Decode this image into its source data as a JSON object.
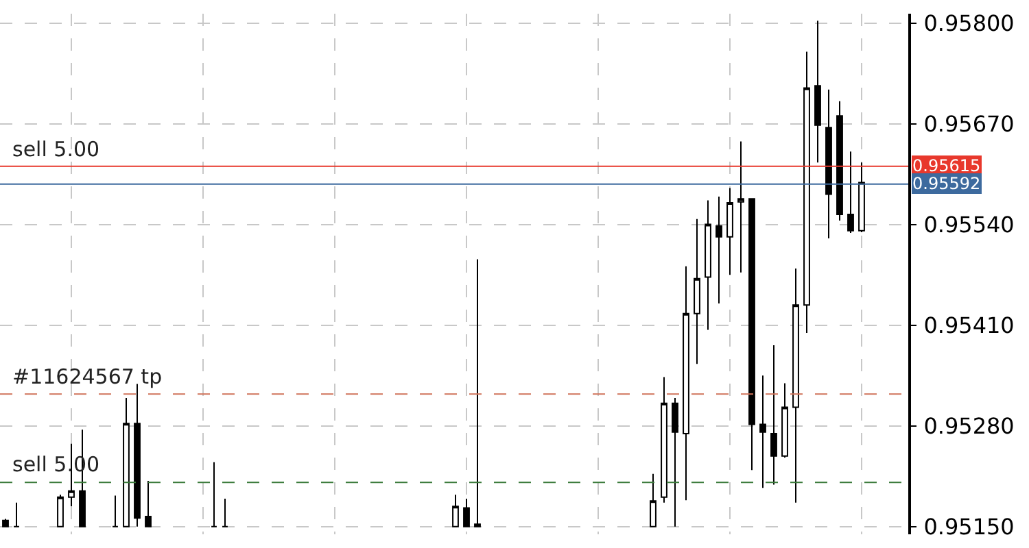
{
  "chart_data": {
    "type": "candlestick",
    "categories": [
      null,
      null,
      null,
      null,
      null,
      null,
      null,
      null,
      null,
      null,
      null,
      null,
      null,
      null,
      null,
      null,
      null,
      null,
      null,
      null,
      null,
      null,
      null,
      null,
      null,
      null,
      null,
      null,
      null,
      null,
      null,
      null,
      null,
      null,
      null,
      null,
      null,
      null,
      null,
      null,
      null,
      null,
      null,
      null,
      null,
      null,
      null,
      null,
      null,
      null,
      null,
      null,
      null,
      null,
      null,
      null,
      null,
      null,
      null,
      null,
      null,
      null,
      null,
      null,
      null,
      null,
      null,
      null,
      null,
      null,
      null,
      null,
      null,
      null,
      null,
      null,
      null,
      null,
      null
    ],
    "ohlc": [
      [
        0.95158,
        0.9516,
        0.9515,
        0.9515
      ],
      [
        0.9515,
        0.95181,
        0.9515,
        0.9515
      ],
      null,
      null,
      null,
      [
        0.9515,
        0.95191,
        0.9515,
        0.95188
      ],
      [
        0.95188,
        0.95257,
        0.95176,
        0.95196
      ],
      [
        0.95196,
        0.95275,
        0.9515,
        0.9515
      ],
      null,
      null,
      [
        0.9515,
        0.9519,
        0.9515,
        0.9515
      ],
      [
        0.9515,
        0.95316,
        0.9515,
        0.95283
      ],
      [
        0.95283,
        0.95334,
        0.9515,
        0.95161
      ],
      [
        0.95163,
        0.95209,
        0.9515,
        0.9515
      ],
      null,
      null,
      null,
      null,
      null,
      [
        0.9515,
        0.95233,
        0.9515,
        0.9515
      ],
      [
        0.9515,
        0.95186,
        0.9515,
        0.9515
      ],
      null,
      null,
      null,
      null,
      null,
      null,
      null,
      null,
      null,
      null,
      null,
      null,
      null,
      null,
      null,
      null,
      null,
      null,
      null,
      null,
      [
        0.9515,
        0.95191,
        0.9515,
        0.95176
      ],
      [
        0.95174,
        0.95186,
        0.9515,
        0.9515
      ],
      [
        0.9515,
        0.95495,
        0.9515,
        0.95153
      ],
      null,
      null,
      null,
      null,
      null,
      null,
      null,
      null,
      null,
      null,
      null,
      null,
      null,
      null,
      null,
      [
        0.9515,
        0.95218,
        0.9515,
        0.95183
      ],
      [
        0.95188,
        0.95343,
        0.95181,
        0.95309
      ],
      [
        0.95309,
        0.95316,
        0.9515,
        0.95272
      ],
      [
        0.9527,
        0.95486,
        0.95184,
        0.95425
      ],
      [
        0.95425,
        0.95547,
        0.9536,
        0.9547
      ],
      [
        0.95472,
        0.95571,
        0.95404,
        0.9554
      ],
      [
        0.95538,
        0.95576,
        0.95438,
        0.95524
      ],
      [
        0.95524,
        0.95587,
        0.95475,
        0.95568
      ],
      [
        0.95569,
        0.95647,
        0.95478,
        0.95573
      ],
      [
        0.95573,
        0.95573,
        0.95223,
        0.95282
      ],
      [
        0.95282,
        0.95345,
        0.952,
        0.95272
      ],
      [
        0.9527,
        0.95384,
        0.95204,
        0.95241
      ],
      [
        0.95241,
        0.95335,
        0.95239,
        0.95304
      ],
      [
        0.95304,
        0.95483,
        0.95181,
        0.95436
      ],
      [
        0.95436,
        0.95763,
        0.954,
        0.95716
      ],
      [
        0.95719,
        0.95803,
        0.9562,
        0.95668
      ],
      [
        0.95665,
        0.95714,
        0.95522,
        0.95579
      ],
      [
        0.9568,
        0.95699,
        0.95545,
        0.95553
      ],
      [
        0.95553,
        0.95634,
        0.95529,
        0.95532
      ],
      [
        0.95532,
        0.9562,
        0.9553,
        0.95594
      ]
    ],
    "ylim": [
      0.9514,
      0.95812
    ],
    "yticks": [
      {
        "value": 0.9515,
        "label": "0.95150"
      },
      {
        "value": 0.9528,
        "label": "0.95280"
      },
      {
        "value": 0.9541,
        "label": "0.95410"
      },
      {
        "value": 0.9554,
        "label": "0.95540"
      },
      {
        "value": 0.9567,
        "label": "0.95670"
      },
      {
        "value": 0.958,
        "label": "0.95800"
      }
    ],
    "tick_labels": "y",
    "grid": true,
    "ref_lines": [
      {
        "axis": "y",
        "value": 0.95615,
        "label": "0.95615",
        "color": "#e8382c",
        "line_style": "solid"
      },
      {
        "axis": "y",
        "value": 0.95592,
        "label": "0.95592",
        "color": "#3d6a9e",
        "line_style": "solid"
      },
      {
        "axis": "y",
        "value": 0.95321,
        "label": "#11624567 tp",
        "color": "#d0735a",
        "line_style": "dashed"
      },
      {
        "axis": "y",
        "value": 0.95207,
        "label": "sell 5.00",
        "color": "#3a7a3a",
        "line_style": "dashed"
      }
    ],
    "annotations": [
      {
        "text": "sell 5.00",
        "y": 0.95615
      }
    ]
  }
}
